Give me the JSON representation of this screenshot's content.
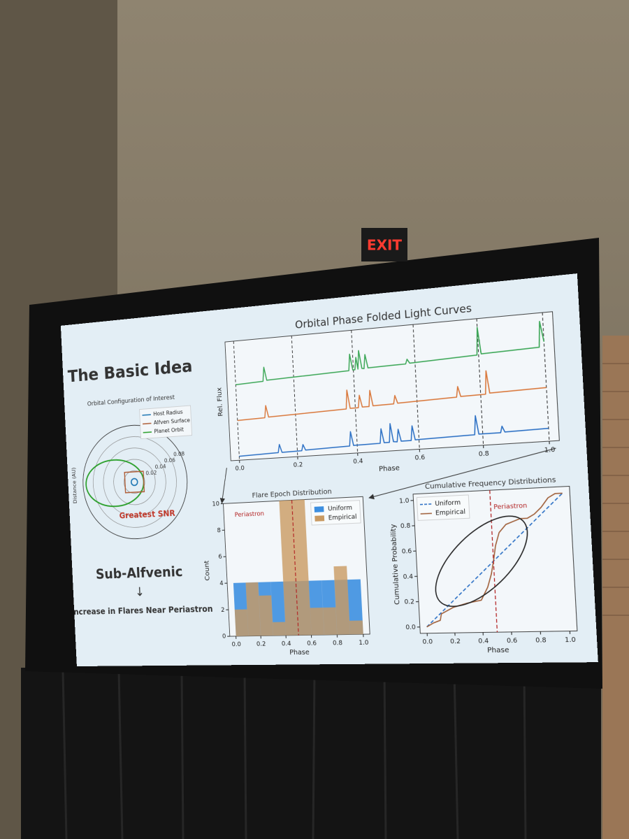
{
  "exit_sign": "EXIT",
  "slide": {
    "title": "The Basic Idea",
    "conclusion": "Sub-Alfvenic",
    "arrow": "↓",
    "result": "Increase in Flares Near Periastron"
  },
  "chart_data": [
    {
      "type": "orbit",
      "title": "Orbital Configuration of Interest",
      "ylabel": "Distance (AU)",
      "rlim": [
        0,
        0.1
      ],
      "rticks": [
        0.02,
        0.04,
        0.06,
        0.08
      ],
      "series": [
        {
          "name": "Host Radius",
          "color": "#1f77b4",
          "values": [
            0.006
          ]
        },
        {
          "name": "Alfven Surface",
          "color": "#b0603a",
          "values": [
            0.018
          ]
        },
        {
          "name": "Planet Orbit",
          "color": "#2ca02c",
          "values": [
            0.056,
            0.68
          ]
        }
      ],
      "annotation": "Greatest SNR",
      "annotation_color": "#c0392b"
    },
    {
      "type": "line",
      "title": "Orbital Phase Folded Light Curves",
      "xlabel": "Phase",
      "ylabel": "Rel. Flux",
      "xlim": [
        -0.03,
        1.03
      ],
      "ylim": [
        0,
        3
      ],
      "grid": true,
      "xticks": [
        {
          "value": 0,
          "label": "0.0"
        },
        0.2,
        0.4,
        0.6,
        0.8,
        {
          "value": 1,
          "label": "1.0"
        }
      ],
      "series": [
        {
          "color": "#3aa655",
          "x": [
            0,
            0.095,
            0.1,
            0.108,
            0.385,
            0.39,
            0.398,
            0.405,
            0.41,
            0.415,
            0.42,
            0.428,
            0.435,
            0.44,
            0.448,
            0.57,
            0.575,
            0.583,
            0.795,
            0.8,
            0.808,
            0.985,
            0.99,
            1.0
          ],
          "values": [
            1.9,
            1.93,
            2.28,
            1.95,
            2.02,
            2.42,
            2.03,
            2.03,
            2.33,
            2.04,
            2.49,
            2.05,
            2.04,
            2.38,
            2.05,
            2.07,
            2.18,
            2.08,
            2.14,
            2.79,
            2.16,
            2.2,
            2.8,
            2.32
          ]
        },
        {
          "color": "#d9773a",
          "x": [
            0,
            0.095,
            0.1,
            0.108,
            0.37,
            0.375,
            0.383,
            0.41,
            0.415,
            0.423,
            0.445,
            0.45,
            0.458,
            0.525,
            0.53,
            0.538,
            0.725,
            0.73,
            0.738,
            0.815,
            0.82,
            0.828,
            1.0
          ],
          "values": [
            1.0,
            1.02,
            1.32,
            1.03,
            1.09,
            1.55,
            1.1,
            1.1,
            1.4,
            1.11,
            1.11,
            1.5,
            1.12,
            1.13,
            1.33,
            1.14,
            1.18,
            1.43,
            1.19,
            1.2,
            1.75,
            1.22,
            1.25
          ]
        },
        {
          "color": "#2a6fc4",
          "x": [
            0,
            0.135,
            0.14,
            0.148,
            0.215,
            0.22,
            0.228,
            0.375,
            0.38,
            0.388,
            0.475,
            0.48,
            0.488,
            0.505,
            0.51,
            0.518,
            0.53,
            0.535,
            0.543,
            0.575,
            0.58,
            0.588,
            0.775,
            0.78,
            0.788,
            0.855,
            0.86,
            0.868,
            1.0
          ],
          "values": [
            0.1,
            0.13,
            0.33,
            0.13,
            0.14,
            0.29,
            0.15,
            0.18,
            0.53,
            0.19,
            0.2,
            0.55,
            0.21,
            0.21,
            0.66,
            0.22,
            0.21,
            0.51,
            0.22,
            0.22,
            0.57,
            0.23,
            0.26,
            0.71,
            0.27,
            0.27,
            0.42,
            0.28,
            0.3
          ]
        }
      ]
    },
    {
      "type": "histogram",
      "title": "Flare Epoch Distribution",
      "xlabel": "Phase",
      "ylabel": "Count",
      "bins": [
        0,
        0.1,
        0.2,
        0.3,
        0.4,
        0.5,
        0.6,
        0.7,
        0.8,
        0.9,
        1.0
      ],
      "series": [
        {
          "name": "Uniform",
          "color": "#3d8fe0",
          "values": [
            4,
            4,
            4,
            4,
            4,
            4,
            4,
            4,
            4,
            4
          ]
        },
        {
          "name": "Empirical",
          "color": "#c99a62",
          "values": [
            2,
            4,
            3,
            1,
            10,
            10,
            2,
            2,
            5,
            1
          ]
        }
      ],
      "xlim": [
        -0.05,
        1.05
      ],
      "ylim": [
        0,
        10
      ],
      "xticks": [
        {
          "value": 0,
          "label": "0.0"
        },
        0.2,
        0.4,
        0.6,
        0.8,
        {
          "value": 1,
          "label": "1.0"
        }
      ],
      "yticks": [
        0,
        2,
        4,
        6,
        8,
        10
      ],
      "legend": "upper right",
      "annotation": "Periastron",
      "annotation_x": 0.5,
      "annotation_color": "#b22222"
    },
    {
      "type": "line",
      "title": "Cumulative Frequency Distributions",
      "xlabel": "Phase",
      "ylabel": "Cumulative Probability",
      "xlim": [
        -0.05,
        1.05
      ],
      "ylim": [
        -0.05,
        1.05
      ],
      "grid": false,
      "xticks": [
        {
          "value": 0,
          "label": "0.0"
        },
        0.2,
        0.4,
        0.6,
        0.8,
        {
          "value": 1,
          "label": "1.0"
        }
      ],
      "yticks": [
        {
          "value": 0,
          "label": "0.0"
        },
        0.2,
        0.4,
        0.6,
        0.8,
        {
          "value": 1,
          "label": "1.0"
        }
      ],
      "series": [
        {
          "name": "Uniform",
          "color": "#2a6fc4",
          "dashed": true,
          "x": [
            0,
            1
          ],
          "values": [
            0,
            1
          ]
        },
        {
          "name": "Empirical",
          "color": "#a0603a",
          "x": [
            0,
            0.05,
            0.1,
            0.11,
            0.2,
            0.3,
            0.4,
            0.45,
            0.48,
            0.5,
            0.52,
            0.55,
            0.6,
            0.65,
            0.7,
            0.75,
            0.8,
            0.85,
            0.9,
            0.95,
            1.0
          ],
          "values": [
            0,
            0.03,
            0.05,
            0.1,
            0.15,
            0.18,
            0.2,
            0.3,
            0.4,
            0.5,
            0.62,
            0.72,
            0.78,
            0.8,
            0.82,
            0.82,
            0.85,
            0.9,
            0.97,
            1.0,
            1.0
          ]
        }
      ],
      "legend": "upper left",
      "annotation": "Periastron",
      "annotation_x": 0.5,
      "annotation_color": "#b22222"
    }
  ]
}
